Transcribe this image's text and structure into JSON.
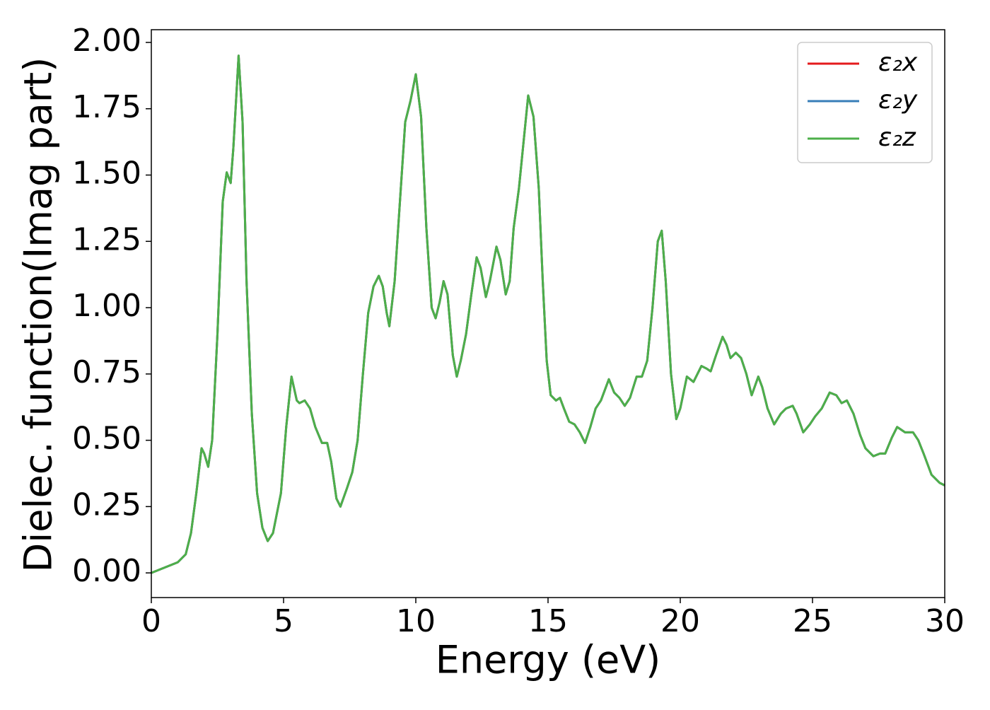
{
  "chart_data": {
    "type": "line",
    "xlabel": "Energy (eV)",
    "ylabel": "Dielec. function(Imag part)",
    "x": [
      0,
      0.5,
      1,
      1.3,
      1.5,
      1.7,
      1.9,
      2.0,
      2.15,
      2.3,
      2.5,
      2.7,
      2.85,
      3.0,
      3.1,
      3.3,
      3.45,
      3.6,
      3.8,
      4.0,
      4.2,
      4.4,
      4.6,
      4.9,
      5.1,
      5.3,
      5.5,
      5.6,
      5.8,
      6.0,
      6.2,
      6.45,
      6.65,
      6.8,
      7.0,
      7.15,
      7.4,
      7.6,
      7.8,
      8.0,
      8.2,
      8.4,
      8.6,
      8.75,
      8.9,
      9.0,
      9.2,
      9.4,
      9.6,
      9.8,
      10.0,
      10.2,
      10.4,
      10.6,
      10.75,
      10.9,
      11.05,
      11.2,
      11.4,
      11.55,
      11.7,
      11.9,
      12.1,
      12.3,
      12.45,
      12.65,
      12.8,
      13.05,
      13.2,
      13.4,
      13.55,
      13.7,
      13.9,
      14.05,
      14.25,
      14.45,
      14.65,
      14.8,
      14.95,
      15.1,
      15.3,
      15.45,
      15.6,
      15.8,
      16.0,
      16.2,
      16.4,
      16.6,
      16.8,
      17.0,
      17.3,
      17.5,
      17.7,
      17.9,
      18.1,
      18.35,
      18.55,
      18.75,
      18.95,
      19.15,
      19.3,
      19.45,
      19.65,
      19.85,
      20.0,
      20.25,
      20.5,
      20.8,
      21.0,
      21.15,
      21.35,
      21.6,
      21.75,
      21.9,
      22.1,
      22.3,
      22.5,
      22.7,
      22.95,
      23.1,
      23.3,
      23.55,
      23.8,
      24.0,
      24.25,
      24.4,
      24.65,
      24.9,
      25.1,
      25.35,
      25.65,
      25.9,
      26.1,
      26.3,
      26.55,
      26.8,
      27.0,
      27.3,
      27.55,
      27.75,
      28.0,
      28.2,
      28.5,
      28.8,
      29.0,
      29.2,
      29.5,
      29.8,
      30.0
    ],
    "series": [
      {
        "name": "ε₂x",
        "color": "#e41a1c",
        "values": [
          0,
          0.02,
          0.04,
          0.07,
          0.15,
          0.3,
          0.47,
          0.45,
          0.4,
          0.5,
          0.9,
          1.4,
          1.51,
          1.47,
          1.6,
          1.95,
          1.7,
          1.1,
          0.6,
          0.3,
          0.17,
          0.12,
          0.15,
          0.3,
          0.55,
          0.74,
          0.65,
          0.64,
          0.65,
          0.62,
          0.55,
          0.49,
          0.49,
          0.42,
          0.28,
          0.25,
          0.32,
          0.38,
          0.5,
          0.75,
          0.98,
          1.08,
          1.12,
          1.08,
          0.98,
          0.93,
          1.1,
          1.4,
          1.7,
          1.78,
          1.88,
          1.72,
          1.3,
          1.0,
          0.96,
          1.02,
          1.1,
          1.05,
          0.82,
          0.74,
          0.8,
          0.9,
          1.05,
          1.19,
          1.15,
          1.04,
          1.1,
          1.23,
          1.18,
          1.05,
          1.1,
          1.3,
          1.45,
          1.6,
          1.8,
          1.72,
          1.45,
          1.1,
          0.8,
          0.67,
          0.65,
          0.66,
          0.62,
          0.57,
          0.56,
          0.53,
          0.49,
          0.55,
          0.62,
          0.65,
          0.73,
          0.68,
          0.66,
          0.63,
          0.66,
          0.74,
          0.74,
          0.8,
          1.0,
          1.25,
          1.29,
          1.1,
          0.75,
          0.58,
          0.62,
          0.74,
          0.72,
          0.78,
          0.77,
          0.76,
          0.82,
          0.89,
          0.86,
          0.81,
          0.83,
          0.81,
          0.75,
          0.67,
          0.74,
          0.7,
          0.62,
          0.56,
          0.6,
          0.62,
          0.63,
          0.6,
          0.53,
          0.56,
          0.59,
          0.62,
          0.68,
          0.67,
          0.64,
          0.65,
          0.6,
          0.52,
          0.47,
          0.44,
          0.45,
          0.45,
          0.51,
          0.55,
          0.53,
          0.53,
          0.5,
          0.45,
          0.37,
          0.34,
          0.33
        ]
      },
      {
        "name": "ε₂y",
        "color": "#377eb8",
        "values": [
          0,
          0.02,
          0.04,
          0.07,
          0.15,
          0.3,
          0.47,
          0.45,
          0.4,
          0.5,
          0.9,
          1.4,
          1.51,
          1.47,
          1.6,
          1.95,
          1.7,
          1.1,
          0.6,
          0.3,
          0.17,
          0.12,
          0.15,
          0.3,
          0.55,
          0.74,
          0.65,
          0.64,
          0.65,
          0.62,
          0.55,
          0.49,
          0.49,
          0.42,
          0.28,
          0.25,
          0.32,
          0.38,
          0.5,
          0.75,
          0.98,
          1.08,
          1.12,
          1.08,
          0.98,
          0.93,
          1.1,
          1.4,
          1.7,
          1.78,
          1.88,
          1.72,
          1.3,
          1.0,
          0.96,
          1.02,
          1.1,
          1.05,
          0.82,
          0.74,
          0.8,
          0.9,
          1.05,
          1.19,
          1.15,
          1.04,
          1.1,
          1.23,
          1.18,
          1.05,
          1.1,
          1.3,
          1.45,
          1.6,
          1.8,
          1.72,
          1.45,
          1.1,
          0.8,
          0.67,
          0.65,
          0.66,
          0.62,
          0.57,
          0.56,
          0.53,
          0.49,
          0.55,
          0.62,
          0.65,
          0.73,
          0.68,
          0.66,
          0.63,
          0.66,
          0.74,
          0.74,
          0.8,
          1.0,
          1.25,
          1.29,
          1.1,
          0.75,
          0.58,
          0.62,
          0.74,
          0.72,
          0.78,
          0.77,
          0.76,
          0.82,
          0.89,
          0.86,
          0.81,
          0.83,
          0.81,
          0.75,
          0.67,
          0.74,
          0.7,
          0.62,
          0.56,
          0.6,
          0.62,
          0.63,
          0.6,
          0.53,
          0.56,
          0.59,
          0.62,
          0.68,
          0.67,
          0.64,
          0.65,
          0.6,
          0.52,
          0.47,
          0.44,
          0.45,
          0.45,
          0.51,
          0.55,
          0.53,
          0.53,
          0.5,
          0.45,
          0.37,
          0.34,
          0.33
        ]
      },
      {
        "name": "ε₂z",
        "color": "#4daf4a",
        "values": [
          0,
          0.02,
          0.04,
          0.07,
          0.15,
          0.3,
          0.47,
          0.45,
          0.4,
          0.5,
          0.9,
          1.4,
          1.51,
          1.47,
          1.6,
          1.95,
          1.7,
          1.1,
          0.6,
          0.3,
          0.17,
          0.12,
          0.15,
          0.3,
          0.55,
          0.74,
          0.65,
          0.64,
          0.65,
          0.62,
          0.55,
          0.49,
          0.49,
          0.42,
          0.28,
          0.25,
          0.32,
          0.38,
          0.5,
          0.75,
          0.98,
          1.08,
          1.12,
          1.08,
          0.98,
          0.93,
          1.1,
          1.4,
          1.7,
          1.78,
          1.88,
          1.72,
          1.3,
          1.0,
          0.96,
          1.02,
          1.1,
          1.05,
          0.82,
          0.74,
          0.8,
          0.9,
          1.05,
          1.19,
          1.15,
          1.04,
          1.1,
          1.23,
          1.18,
          1.05,
          1.1,
          1.3,
          1.45,
          1.6,
          1.8,
          1.72,
          1.45,
          1.1,
          0.8,
          0.67,
          0.65,
          0.66,
          0.62,
          0.57,
          0.56,
          0.53,
          0.49,
          0.55,
          0.62,
          0.65,
          0.73,
          0.68,
          0.66,
          0.63,
          0.66,
          0.74,
          0.74,
          0.8,
          1.0,
          1.25,
          1.29,
          1.1,
          0.75,
          0.58,
          0.62,
          0.74,
          0.72,
          0.78,
          0.77,
          0.76,
          0.82,
          0.89,
          0.86,
          0.81,
          0.83,
          0.81,
          0.75,
          0.67,
          0.74,
          0.7,
          0.62,
          0.56,
          0.6,
          0.62,
          0.63,
          0.6,
          0.53,
          0.56,
          0.59,
          0.62,
          0.68,
          0.67,
          0.64,
          0.65,
          0.6,
          0.52,
          0.47,
          0.44,
          0.45,
          0.45,
          0.51,
          0.55,
          0.53,
          0.53,
          0.5,
          0.45,
          0.37,
          0.34,
          0.33
        ]
      }
    ],
    "xlim": [
      0,
      30
    ],
    "xticks": [
      0,
      5,
      10,
      15,
      20,
      25,
      30
    ],
    "ylim": [
      -0.093,
      2.048
    ],
    "yticks": [
      {
        "value": 0,
        "label": "0.00"
      },
      {
        "value": 0.25,
        "label": "0.25"
      },
      {
        "value": 0.5,
        "label": "0.50"
      },
      {
        "value": 0.75,
        "label": "0.75"
      },
      {
        "value": 1,
        "label": "1.00"
      },
      {
        "value": 1.25,
        "label": "1.25"
      },
      {
        "value": 1.5,
        "label": "1.50"
      },
      {
        "value": 1.75,
        "label": "1.75"
      },
      {
        "value": 2,
        "label": "2.00"
      }
    ],
    "grid": false,
    "legend": "upper right"
  }
}
